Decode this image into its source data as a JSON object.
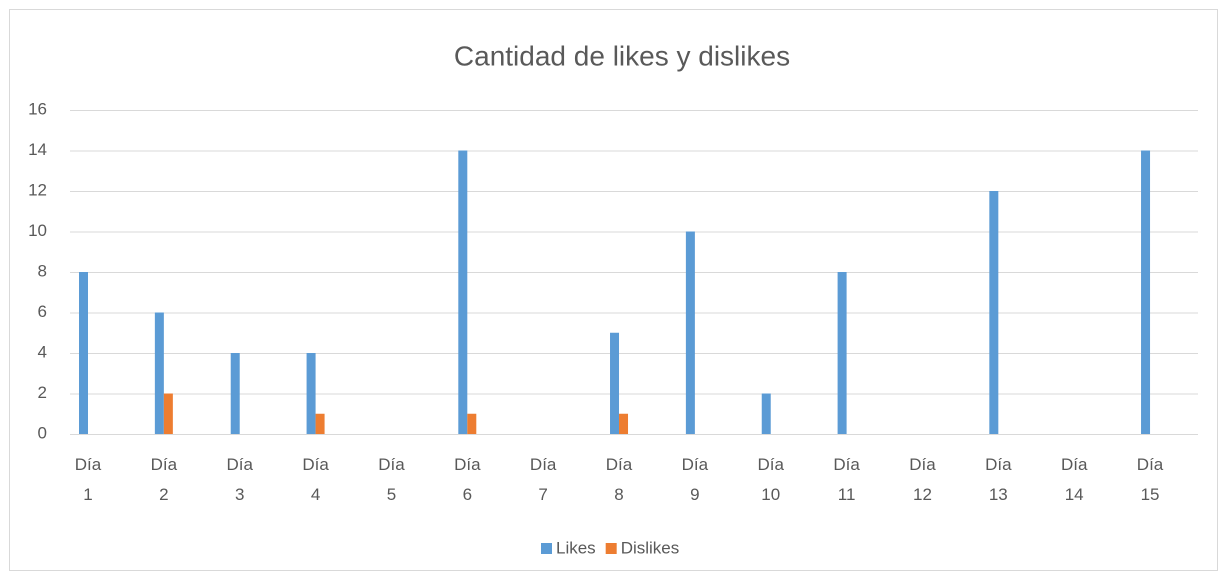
{
  "chart_data": {
    "type": "bar",
    "title": "Cantidad de likes y dislikes",
    "categories": [
      "Día 1",
      "Día 2",
      "Día 3",
      "Día 4",
      "Día 5",
      "Día 6",
      "Día 7",
      "Día 8",
      "Día 9",
      "Día 10",
      "Día 11",
      "Día 12",
      "Día 13",
      "Día 14",
      "Día 15"
    ],
    "series": [
      {
        "name": "Likes",
        "color": "#5b9bd5",
        "values": [
          8,
          6,
          4,
          4,
          0,
          14,
          0,
          5,
          10,
          2,
          8,
          0,
          12,
          0,
          14
        ]
      },
      {
        "name": "Dislikes",
        "color": "#ed7d31",
        "values": [
          0,
          2,
          0,
          1,
          0,
          1,
          0,
          1,
          0,
          0,
          0,
          0,
          0,
          0,
          0
        ]
      }
    ],
    "ylim": [
      0,
      16
    ],
    "yticks": [
      0,
      2,
      4,
      6,
      8,
      10,
      12,
      14,
      16
    ],
    "grid": true,
    "legend": "bottom"
  }
}
